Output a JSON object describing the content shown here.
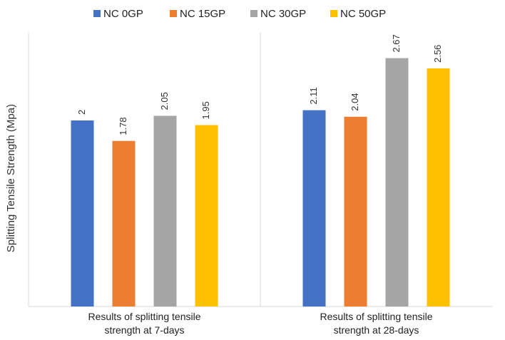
{
  "chart_data": {
    "type": "bar",
    "title": "",
    "xlabel": "",
    "ylabel": "Splitting Tensile Strength (Mpa)",
    "categories": [
      [
        "Results of splitting tensile",
        "strength at 7-days"
      ],
      [
        "Results of splitting tensile",
        "strength at 28-days"
      ]
    ],
    "series": [
      {
        "name": "NC 0GP",
        "color": "#4472C4",
        "values": [
          2,
          2.11
        ],
        "labels": [
          "2",
          "2.11"
        ]
      },
      {
        "name": "NC 15GP",
        "color": "#ED7D31",
        "values": [
          1.78,
          2.04
        ],
        "labels": [
          "1.78",
          "2.04"
        ]
      },
      {
        "name": "NC 30GP",
        "color": "#A5A5A5",
        "values": [
          2.05,
          2.67
        ],
        "labels": [
          "2.05",
          "2.67"
        ]
      },
      {
        "name": "NC 50GP",
        "color": "#FFC000",
        "values": [
          1.95,
          2.56
        ],
        "labels": [
          "1.95",
          "2.56"
        ]
      }
    ],
    "ylim": [
      0,
      2.95
    ],
    "legend_position": "top",
    "grid": false
  }
}
